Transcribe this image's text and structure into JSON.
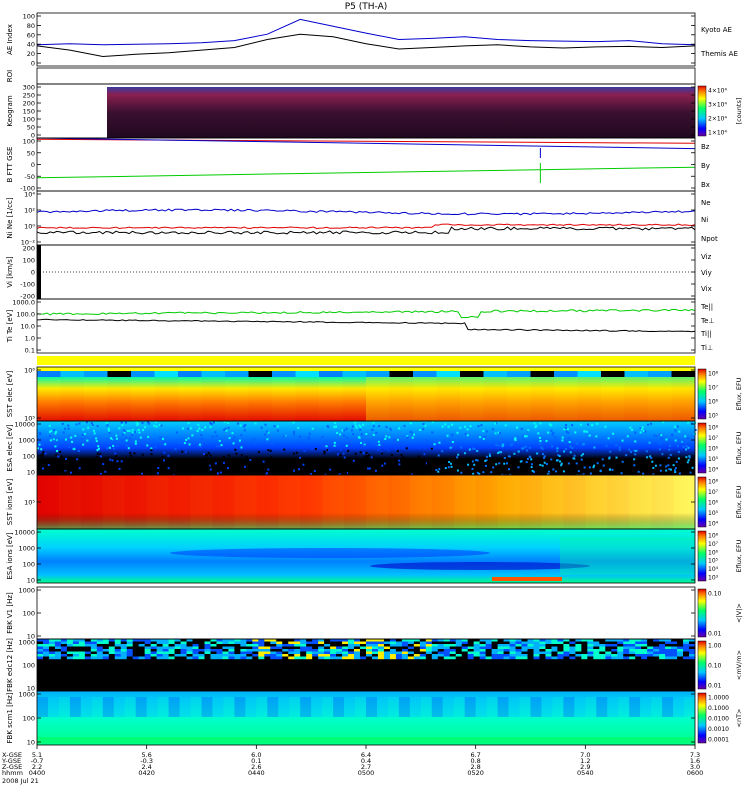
{
  "chart_data": {
    "type": "line",
    "title": "P5 (TH-A)",
    "date_label": "2008 Jul 21",
    "x_axis": {
      "row_labels": [
        "X-GSE",
        "Y-GSE",
        "Z-GSE",
        "hhmm"
      ],
      "ticks": [
        {
          "x": "5.1",
          "y": "-0.7",
          "z": "2.2",
          "time": "0400"
        },
        {
          "x": "5.6",
          "y": "-0.3",
          "z": "2.4",
          "time": "0420"
        },
        {
          "x": "6.0",
          "y": "0.1",
          "z": "2.6",
          "time": "0440"
        },
        {
          "x": "6.4",
          "y": "0.4",
          "z": "2.7",
          "time": "0500"
        },
        {
          "x": "6.7",
          "y": "0.8",
          "z": "2.8",
          "time": "0520"
        },
        {
          "x": "7.0",
          "y": "1.2",
          "z": "2.9",
          "time": "0540"
        },
        {
          "x": "7.3",
          "y": "1.6",
          "z": "3.0",
          "time": "0600"
        }
      ]
    },
    "panels": [
      {
        "id": "ae",
        "ylabel": "AE Index",
        "yticks": [
          "100",
          "80",
          "60",
          "40",
          "20",
          "0"
        ],
        "ylim": [
          0,
          100
        ],
        "series": [
          {
            "name": "Kyoto AE",
            "color": "#0000cc",
            "x": [
              0,
              5,
              10,
              15,
              20,
              25,
              30,
              35,
              40,
              45,
              50,
              55,
              60,
              65,
              70,
              75,
              80,
              85,
              90,
              95,
              100
            ],
            "values": [
              40,
              42,
              40,
              41,
              42,
              44,
              48,
              60,
              88,
              75,
              62,
              50,
              52,
              55,
              50,
              48,
              47,
              46,
              48,
              42,
              40
            ]
          },
          {
            "name": "Themis AE",
            "color": "#000000",
            "x": [
              0,
              5,
              10,
              15,
              20,
              25,
              30,
              35,
              40,
              45,
              50,
              55,
              60,
              65,
              70,
              75,
              80,
              85,
              90,
              95,
              100
            ],
            "values": [
              38,
              30,
              18,
              22,
              25,
              30,
              35,
              50,
              60,
              55,
              42,
              32,
              35,
              38,
              40,
              36,
              34,
              36,
              37,
              35,
              38
            ]
          }
        ]
      },
      {
        "id": "roi",
        "ylabel": "ROI"
      },
      {
        "id": "keogram",
        "ylabel": "Keogram",
        "yticks": [
          "300",
          "250",
          "200",
          "150",
          "100",
          "50",
          "0"
        ],
        "colorbar": {
          "ticks": [
            "4×10⁴",
            "3×10⁴",
            "2×10⁴",
            "1×10⁴"
          ],
          "unit": "[counts]"
        }
      },
      {
        "id": "bfield",
        "ylabel": "B FTT GSE",
        "yticks": [
          "100",
          "50",
          "0",
          "-50",
          "-100"
        ],
        "ylim": [
          -100,
          100
        ],
        "series": [
          {
            "name": "Bz",
            "color": "#e00000",
            "x": [
              0,
              100
            ],
            "values": [
              95,
              80
            ]
          },
          {
            "name": "By",
            "color": "#00cc00",
            "x": [
              0,
              100
            ],
            "values": [
              -50,
              -10
            ]
          },
          {
            "name": "Bx",
            "color": "#0000cc",
            "x": [
              0,
              100
            ],
            "values": [
              100,
              60
            ]
          }
        ]
      },
      {
        "id": "density",
        "ylabel": "Ni Ne [1/cc]",
        "yticks": [
          "10⁴",
          "10²",
          "10⁰",
          "10⁻²"
        ],
        "series": [
          {
            "name": "Ne",
            "color": "#e00000"
          },
          {
            "name": "Ni",
            "color": "#000000"
          },
          {
            "name": "Npot",
            "color": "#0000cc"
          }
        ]
      },
      {
        "id": "velocity",
        "ylabel": "Vi [km/s]",
        "yticks": [
          "200",
          "100",
          "0",
          "-100",
          "-200"
        ],
        "series": [
          {
            "name": "Viz",
            "color": "#e00000"
          },
          {
            "name": "Viy",
            "color": "#00cc00"
          },
          {
            "name": "Vix",
            "color": "#0000cc"
          }
        ]
      },
      {
        "id": "temperature",
        "ylabel": "Ti Te [eV]",
        "yticks": [
          "1000.0",
          "100.0",
          "10.0",
          "1.0",
          "0.1"
        ],
        "series": [
          {
            "name": "Te||",
            "color": "#000000"
          },
          {
            "name": "Te⊥",
            "color": "#e00000"
          },
          {
            "name": "Ti||",
            "color": "#00cc00"
          },
          {
            "name": "Ti⊥",
            "color": "#0000cc"
          }
        ]
      },
      {
        "id": "sst_e",
        "ylabel": "SST elec [eV]",
        "yticks": [
          "10⁶",
          "10⁵"
        ],
        "colorbar": {
          "ticks": [
            "10⁸",
            "10⁷",
            "10⁶",
            "10⁵"
          ],
          "unit": "Eflux, EFU"
        }
      },
      {
        "id": "esa_e",
        "ylabel": "ESA elec [eV]",
        "yticks": [
          "10000",
          "1000",
          "100",
          "10"
        ],
        "colorbar": {
          "ticks": [
            "10⁸",
            "10⁷",
            "10⁶",
            "10⁵",
            "10⁴"
          ],
          "unit": "Eflux, EFU"
        }
      },
      {
        "id": "sst_i",
        "ylabel": "SST ions [eV]",
        "yticks": [
          "10⁵"
        ],
        "colorbar": {
          "ticks": [
            "10⁸",
            "10⁷",
            "10⁶",
            "10⁵",
            "10⁴"
          ],
          "unit": "Eflux, EFU"
        }
      },
      {
        "id": "esa_i",
        "ylabel": "ESA ions [eV]",
        "yticks": [
          "10000",
          "1000",
          "100",
          "10"
        ],
        "colorbar": {
          "ticks": [
            "10⁸",
            "10⁷",
            "10⁶",
            "10⁵",
            "10⁴",
            "10³"
          ],
          "unit": "Eflux, EFU"
        }
      },
      {
        "id": "fbk_v1",
        "ylabel": "FBK V1 [Hz]",
        "yticks": [
          "1000",
          "100",
          "10"
        ],
        "colorbar": {
          "ticks": [
            "0.10",
            "0.01"
          ],
          "unit": "<|V|>"
        }
      },
      {
        "id": "fbk_edc12",
        "ylabel": "FBK edc12 [Hz]",
        "yticks": [
          "1000",
          "100",
          "10"
        ],
        "colorbar": {
          "ticks": [
            "1.00",
            "0.10",
            "0.01"
          ],
          "unit": "<mV/m>"
        }
      },
      {
        "id": "fbk_scm1",
        "ylabel": "FBK scm1 [Hz]",
        "yticks": [
          "1000",
          "100",
          "10"
        ],
        "colorbar": {
          "ticks": [
            "1.0000",
            "0.1000",
            "0.0100",
            "0.0010",
            "0.0001"
          ],
          "unit": "<nT>"
        }
      }
    ]
  }
}
